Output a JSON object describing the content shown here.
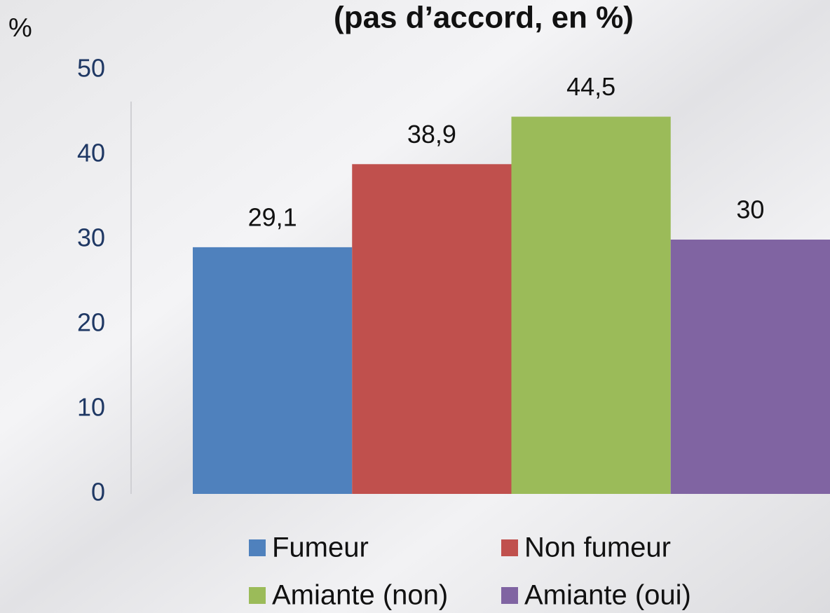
{
  "chart_data": {
    "type": "bar",
    "title": "(pas d’accord, en %)",
    "y_label": "%",
    "categories": [
      null
    ],
    "series": [
      {
        "name": "Fumeur",
        "color": "#4f81bd",
        "values": [
          29.1
        ],
        "value_labels": [
          "29,1"
        ]
      },
      {
        "name": "Non fumeur",
        "color": "#c0504d",
        "values": [
          38.9
        ],
        "value_labels": [
          "38,9"
        ]
      },
      {
        "name": "Amiante (non)",
        "color": "#9bbb59",
        "values": [
          44.5
        ],
        "value_labels": [
          "44,5"
        ]
      },
      {
        "name": "Amiante (oui)",
        "color": "#8064a2",
        "values": [
          30
        ],
        "value_labels": [
          "30"
        ]
      }
    ],
    "ylim": [
      0,
      50
    ],
    "yticks": [
      0,
      10,
      20,
      30,
      40,
      50
    ],
    "grid": false,
    "legend": "bottom"
  }
}
